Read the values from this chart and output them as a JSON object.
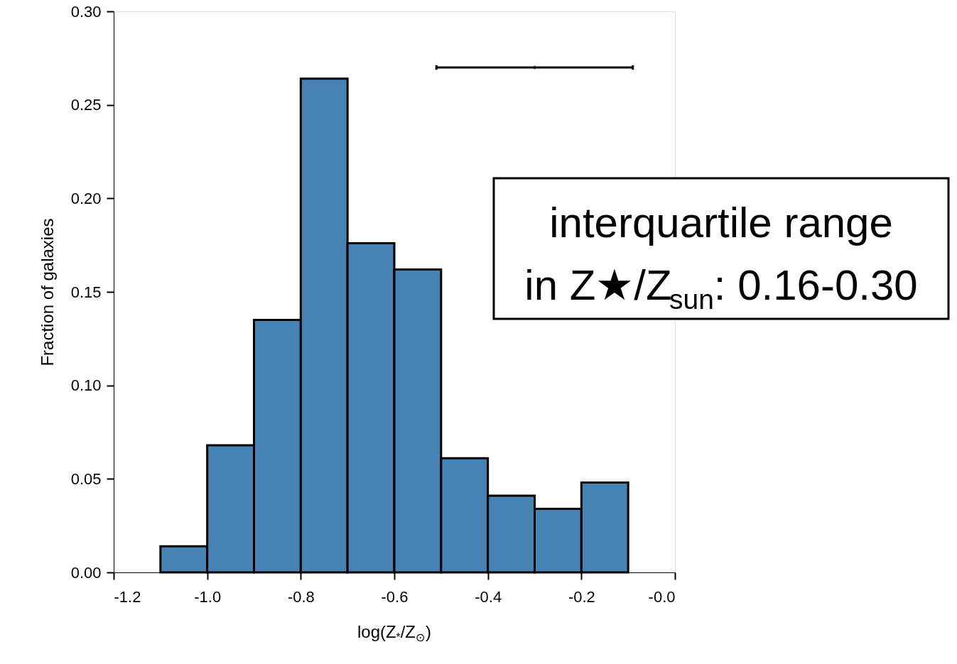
{
  "chart_data": {
    "type": "histogram",
    "xlabel": "log(Z$_{*}$/Z$_{⊙}$)",
    "ylabel": "Fraction of galaxies",
    "bins": [
      -1.1,
      -1.0,
      -0.9,
      -0.8,
      -0.7,
      -0.6,
      -0.5,
      -0.4,
      -0.3,
      -0.2,
      -0.1
    ],
    "values": [
      0.014,
      0.068,
      0.135,
      0.264,
      0.176,
      0.162,
      0.061,
      0.041,
      0.034,
      0.048
    ],
    "color": "#4682b4",
    "series": [
      {
        "type": "scatter",
        "x": [
          -0.3
        ],
        "values": [
          0.27
        ],
        "xerrors": [
          [
            -0.51,
            -0.09
          ]
        ],
        "color": "#000000"
      }
    ],
    "xlim": [
      -1.2,
      0.0
    ],
    "ylim": [
      0.0,
      0.3
    ],
    "xticks": [
      -1.2,
      {
        "value": -1.0,
        "label": "-1.0"
      },
      -0.8,
      -0.6,
      -0.4,
      -0.2,
      {
        "value": 0.0,
        "label": "-0.0"
      }
    ],
    "yticks": [
      {
        "value": 0.0,
        "label": "0.00"
      },
      0.05,
      {
        "value": 0.1,
        "label": "0.10"
      },
      0.15,
      {
        "value": 0.2,
        "label": "0.20"
      },
      0.25,
      {
        "value": 0.3,
        "label": "0.30"
      }
    ],
    "grid": false,
    "annotations": [
      "interquartile range\nin Z★/Z$_{sun}$: 0.16-0.30"
    ]
  }
}
